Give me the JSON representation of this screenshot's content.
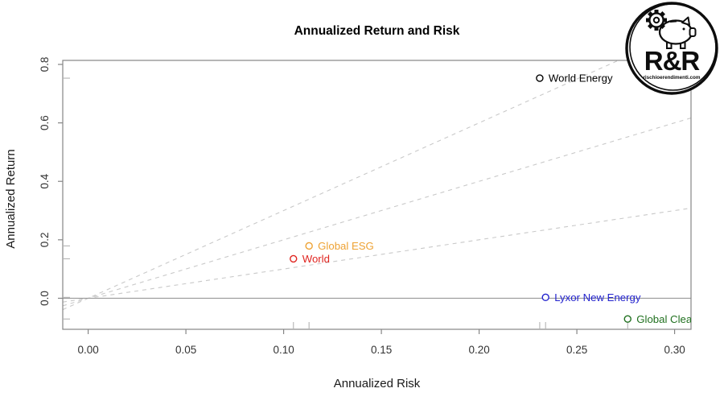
{
  "logo": {
    "name": "R&R",
    "website": "rischioerendimenti.com"
  },
  "chart_data": {
    "type": "scatter",
    "title": "Annualized Return and Risk",
    "xlabel": "Annualized Risk",
    "ylabel": "Annualized Return",
    "xlim": [
      -0.013,
      0.3084
    ],
    "ylim": [
      -0.1062,
      0.8138
    ],
    "x_tick_labels": [
      "0.00",
      "0.05",
      "0.10",
      "0.15",
      "0.20",
      "0.25",
      "0.30"
    ],
    "x_tick_values": [
      0,
      0.05,
      0.1,
      0.15,
      0.2,
      0.25,
      0.3
    ],
    "y_tick_labels": [
      "0.0",
      "0.2",
      "0.4",
      "0.6",
      "0.8"
    ],
    "y_tick_values": [
      0,
      0.2,
      0.4,
      0.6,
      0.8
    ],
    "grid": false,
    "legend": "none",
    "zero_line_y": 0,
    "reference_lines": [
      {
        "slope": 1,
        "intercept": 0,
        "style": "dashed"
      },
      {
        "slope": 2,
        "intercept": 0,
        "style": "dashed"
      },
      {
        "slope": 3,
        "intercept": 0,
        "style": "dashed"
      }
    ],
    "rug_marks": true,
    "series": [
      {
        "name": "World Energy",
        "x": 0.231,
        "y": 0.753,
        "color": "#000000"
      },
      {
        "name": "Global ESG",
        "x": 0.113,
        "y": 0.179,
        "color": "#EEA233"
      },
      {
        "name": "World",
        "x": 0.105,
        "y": 0.135,
        "color": "#E02520"
      },
      {
        "name": "Lyxor New Energy",
        "x": 0.234,
        "y": 0.003,
        "color": "#2323CE"
      },
      {
        "name": "Global Clea",
        "x": 0.276,
        "y": -0.071,
        "color": "#20701F"
      }
    ],
    "style": {
      "point_radius": 4,
      "box_color": "#858585",
      "tick_color": "#858585",
      "tick_label_color": "#333333",
      "dashed_line_color": "#c9c9c9",
      "zero_line_color": "#9a9a9a",
      "rug_color": "#b3b3b3"
    }
  }
}
